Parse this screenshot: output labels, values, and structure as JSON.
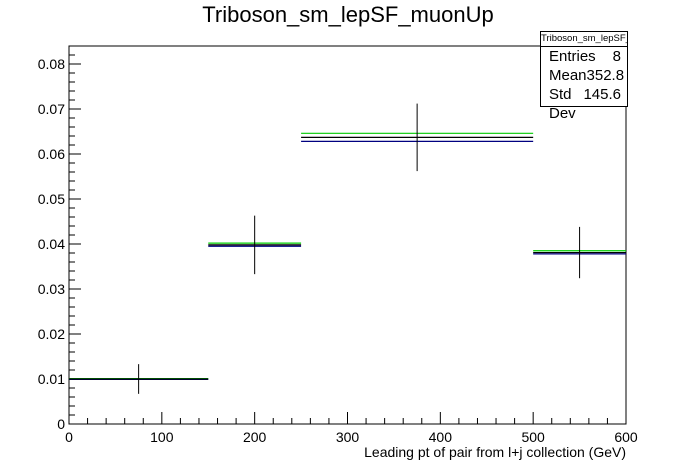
{
  "chart_data": {
    "type": "histogram",
    "title": "Triboson_sm_lepSF_muonUp",
    "xlabel": "Leading pt of pair from l+j collection (GeV)",
    "ylabel": "",
    "xlim": [
      0,
      600
    ],
    "ylim": [
      0,
      0.084
    ],
    "x_ticks": [
      "0",
      "100",
      "200",
      "300",
      "400",
      "500",
      "600"
    ],
    "y_ticks": [
      "0",
      "0.01",
      "0.02",
      "0.03",
      "0.04",
      "0.05",
      "0.06",
      "0.07",
      "0.08"
    ],
    "grid": false,
    "bins": [
      {
        "x_low": 0,
        "x_high": 150,
        "x_center": 75,
        "value": 0.01,
        "err": 0.0033
      },
      {
        "x_low": 150,
        "x_high": 250,
        "x_center": 200,
        "value": 0.0398,
        "err": 0.0065
      },
      {
        "x_low": 250,
        "x_high": 500,
        "x_center": 375,
        "value": 0.0637,
        "err": 0.0075
      },
      {
        "x_low": 500,
        "x_high": 600,
        "x_center": 550,
        "value": 0.0381,
        "err": 0.0057
      }
    ],
    "overlay_series": [
      {
        "color": "#00cc00",
        "values": [
          0.0101,
          0.0402,
          0.0646,
          0.0385
        ]
      },
      {
        "color": "#000080",
        "values": [
          0.0099,
          0.0395,
          0.0628,
          0.0378
        ]
      }
    ],
    "stats": {
      "title": "Triboson_sm_lepSF_muonUp",
      "rows": [
        {
          "label": "Entries",
          "value": "8"
        },
        {
          "label": "Mean",
          "value": "352.8"
        },
        {
          "label": "Std Dev",
          "value": "145.6"
        }
      ]
    }
  }
}
